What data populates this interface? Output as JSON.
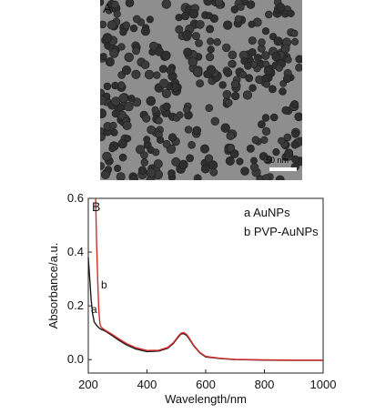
{
  "panel_a": {
    "letter": "A",
    "scale_label": "50 nm"
  },
  "chart_data": {
    "type": "line",
    "panel_letter": "B",
    "xlabel": "Wavelength/nm",
    "ylabel": "Absorbance/a.u.",
    "xlim": [
      200,
      1000
    ],
    "ylim": [
      -0.05,
      0.6
    ],
    "xticks": [
      200,
      400,
      600,
      800,
      1000
    ],
    "yticks": [
      0.0,
      0.2,
      0.4,
      0.6
    ],
    "xtick_labels": [
      "200",
      "400",
      "600",
      "800",
      "1000"
    ],
    "ytick_labels": [
      "0.0",
      "0.2",
      "0.4",
      "0.6"
    ],
    "legend_position": "top-right",
    "legend": [
      "a AuNPs",
      "b PVP-AuNPs"
    ],
    "curve_labels": [
      "a",
      "b"
    ],
    "series": [
      {
        "name": "a AuNPs",
        "label": "a",
        "color": "#1a1a1a",
        "x": [
          200,
          205,
          210,
          215,
          220,
          230,
          240,
          250,
          260,
          280,
          300,
          330,
          360,
          400,
          440,
          470,
          490,
          505,
          515,
          525,
          535,
          545,
          560,
          580,
          600,
          650,
          700,
          800,
          900,
          1000
        ],
        "y": [
          0.38,
          0.3,
          0.22,
          0.17,
          0.14,
          0.125,
          0.115,
          0.11,
          0.105,
          0.09,
          0.075,
          0.055,
          0.04,
          0.03,
          0.032,
          0.042,
          0.06,
          0.082,
          0.095,
          0.097,
          0.09,
          0.075,
          0.05,
          0.025,
          0.01,
          0.004,
          0.0,
          -0.002,
          -0.003,
          -0.003
        ]
      },
      {
        "name": "b PVP-AuNPs",
        "label": "b",
        "color": "#d42b2b",
        "x": [
          225,
          228,
          232,
          236,
          240,
          245,
          250,
          260,
          280,
          300,
          330,
          360,
          400,
          440,
          470,
          490,
          505,
          515,
          525,
          535,
          545,
          560,
          580,
          600,
          650,
          700,
          800,
          900,
          1000
        ],
        "y": [
          0.6,
          0.45,
          0.3,
          0.18,
          0.13,
          0.12,
          0.115,
          0.108,
          0.095,
          0.08,
          0.06,
          0.045,
          0.034,
          0.035,
          0.045,
          0.063,
          0.085,
          0.098,
          0.101,
          0.094,
          0.078,
          0.052,
          0.027,
          0.012,
          0.005,
          0.001,
          -0.001,
          -0.002,
          -0.002
        ]
      }
    ]
  }
}
